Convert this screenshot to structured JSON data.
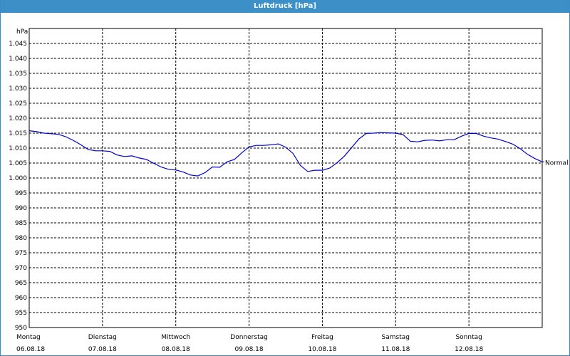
{
  "window": {
    "title": "Luftdruck [hPa]"
  },
  "chart_data": {
    "type": "line",
    "title": "Luftdruck [hPa]",
    "ylabel": "hPa",
    "ylim": [
      950,
      1050
    ],
    "ytick_step": 5,
    "ytick_labels": [
      "950",
      "955",
      "960",
      "965",
      "970",
      "975",
      "980",
      "985",
      "990",
      "995",
      "1.000",
      "1.005",
      "1.010",
      "1.015",
      "1.020",
      "1.025",
      "1.030",
      "1.035",
      "1.040",
      "1.045"
    ],
    "xlim": [
      0,
      7
    ],
    "grid": true,
    "x_days": [
      {
        "day": "Montag",
        "date": "06.08.18"
      },
      {
        "day": "Dienstag",
        "date": "07.08.18"
      },
      {
        "day": "Mittwoch",
        "date": "08.08.18"
      },
      {
        "day": "Donnerstag",
        "date": "09.08.18"
      },
      {
        "day": "Freitag",
        "date": "10.08.18"
      },
      {
        "day": "Samstag",
        "date": "11.08.18"
      },
      {
        "day": "Sonntag",
        "date": "12.08.18"
      }
    ],
    "reference_label": "Normal",
    "series": [
      {
        "color": "#0000cc",
        "x": [
          0,
          0.1,
          0.2,
          0.3,
          0.4,
          0.5,
          0.6,
          0.7,
          0.8,
          0.9,
          1.0,
          1.1,
          1.2,
          1.3,
          1.4,
          1.5,
          1.6,
          1.7,
          1.8,
          1.9,
          2.0,
          2.1,
          2.2,
          2.3,
          2.4,
          2.5,
          2.6,
          2.7,
          2.8,
          2.9,
          3.0,
          3.1,
          3.2,
          3.3,
          3.4,
          3.5,
          3.6,
          3.7,
          3.8,
          3.9,
          4.0,
          4.1,
          4.2,
          4.3,
          4.4,
          4.5,
          4.6,
          4.7,
          4.8,
          4.9,
          5.0,
          5.1,
          5.2,
          5.3,
          5.4,
          5.5,
          5.6,
          5.7,
          5.8,
          5.9,
          6.0,
          6.1,
          6.2,
          6.3,
          6.4,
          6.5,
          6.6,
          6.7,
          6.8,
          6.9,
          7.0
        ],
        "values": [
          1015.8,
          1015.5,
          1015.0,
          1014.8,
          1014.6,
          1013.8,
          1012.6,
          1011.2,
          1009.6,
          1009.1,
          1009.1,
          1008.9,
          1007.7,
          1007.2,
          1007.4,
          1006.7,
          1006.2,
          1004.9,
          1003.7,
          1002.9,
          1002.7,
          1002.0,
          1001.0,
          1000.7,
          1001.8,
          1003.7,
          1003.6,
          1005.4,
          1006.2,
          1008.4,
          1010.4,
          1010.9,
          1010.9,
          1011.1,
          1011.4,
          1010.3,
          1008.2,
          1004.2,
          1002.2,
          1002.6,
          1002.6,
          1003.3,
          1005.1,
          1007.3,
          1010.2,
          1013.1,
          1014.9,
          1015.0,
          1015.2,
          1015.1,
          1015.0,
          1014.5,
          1012.3,
          1012.1,
          1012.6,
          1012.7,
          1012.4,
          1012.8,
          1012.8,
          1014.0,
          1014.9,
          1014.9,
          1014.0,
          1013.4,
          1013.0,
          1012.2,
          1011.3,
          1009.8,
          1007.9,
          1006.5,
          1005.4
        ]
      }
    ]
  }
}
